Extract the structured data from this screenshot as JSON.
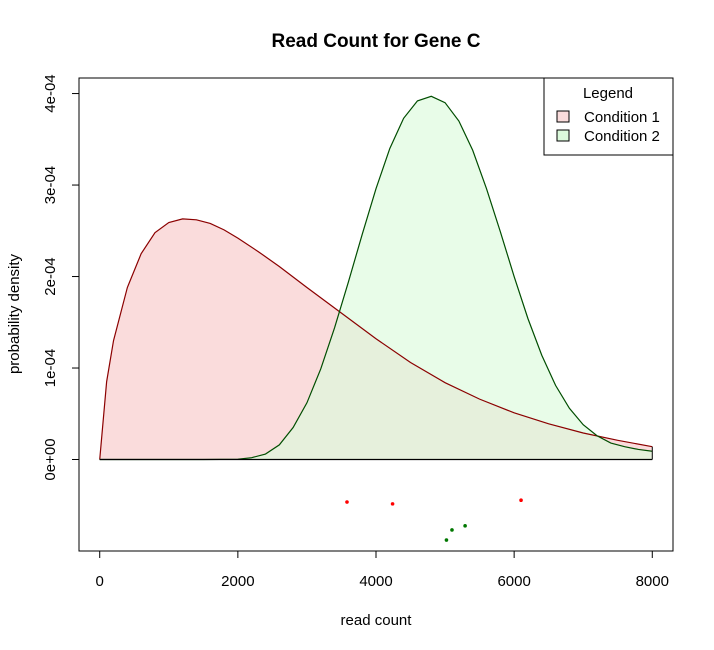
{
  "chart_data": {
    "type": "area",
    "title": "Read Count for Gene C",
    "xlabel": "read count",
    "ylabel": "probability density",
    "xlim": [
      -300,
      8300
    ],
    "ylim": [
      -0.0001,
      0.000417
    ],
    "x_ticks": [
      0,
      2000,
      4000,
      6000,
      8000
    ],
    "x_tick_labels": [
      "0",
      "2000",
      "4000",
      "6000",
      "8000"
    ],
    "y_ticks": [
      0,
      0.0001,
      0.0002,
      0.0003,
      0.0004
    ],
    "y_tick_labels": [
      "0e+00",
      "1e-04",
      "2e-04",
      "3e-04",
      "4e-04"
    ],
    "grid": false,
    "legend": {
      "title": "Legend",
      "position": "top-right",
      "entries": [
        {
          "label": "Condition 1",
          "fill": "#fadcdc"
        },
        {
          "label": "Condition 2",
          "fill": "#dcfadc"
        }
      ]
    },
    "series": [
      {
        "fill": "#fadcdc",
        "stroke": "#8b0000",
        "x": [
          0,
          100,
          200,
          400,
          600,
          800,
          1000,
          1200,
          1400,
          1600,
          1800,
          2000,
          2300,
          2600,
          3000,
          3500,
          4000,
          4500,
          5000,
          5500,
          6000,
          6500,
          7000,
          7500,
          8000
        ],
        "y": [
          0,
          8.5e-05,
          0.00013,
          0.000188,
          0.000225,
          0.000248,
          0.000259,
          0.000263,
          0.000262,
          0.000258,
          0.000251,
          0.000242,
          0.000227,
          0.000211,
          0.000188,
          0.00016,
          0.000132,
          0.000106,
          8.4e-05,
          6.6e-05,
          5.1e-05,
          3.9e-05,
          2.9e-05,
          2.1e-05,
          1.4e-05
        ]
      },
      {
        "fill": "#dcfadc",
        "stroke": "#004d00",
        "x": [
          0,
          1000,
          1500,
          2000,
          2200,
          2400,
          2600,
          2800,
          3000,
          3200,
          3400,
          3600,
          3800,
          4000,
          4200,
          4400,
          4600,
          4800,
          5000,
          5200,
          5400,
          5600,
          5800,
          6000,
          6200,
          6400,
          6600,
          6800,
          7000,
          7200,
          7400,
          7600,
          7800,
          8000
        ],
        "y": [
          0,
          0,
          0,
          3e-07,
          2e-06,
          6e-06,
          1.6e-05,
          3.5e-05,
          6.2e-05,
          9.9e-05,
          0.000144,
          0.000194,
          0.000246,
          0.000296,
          0.00034,
          0.000373,
          0.000392,
          0.000397,
          0.00039,
          0.00037,
          0.000338,
          0.000296,
          0.000249,
          0.0002,
          0.000154,
          0.000114,
          8.1e-05,
          5.6e-05,
          3.8e-05,
          2.6e-05,
          1.8e-05,
          1.4e-05,
          1.1e-05,
          9e-06
        ]
      }
    ],
    "points": [
      {
        "x": 3580,
        "y": -4.65e-05,
        "color": "#ff0000"
      },
      {
        "x": 4240,
        "y": -4.85e-05,
        "color": "#ff0000"
      },
      {
        "x": 6100,
        "y": -4.45e-05,
        "color": "#ff0000"
      },
      {
        "x": 5020,
        "y": -8.8e-05,
        "color": "#007700"
      },
      {
        "x": 5100,
        "y": -7.7e-05,
        "color": "#007700"
      },
      {
        "x": 5290,
        "y": -7.25e-05,
        "color": "#007700"
      }
    ]
  }
}
